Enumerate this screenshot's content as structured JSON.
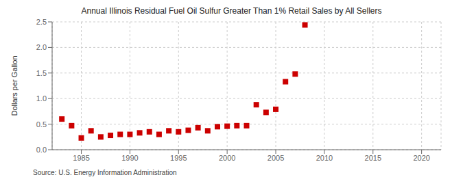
{
  "chart_data": {
    "type": "scatter",
    "title": "Annual Illinois Residual Fuel Oil Sulfur Greater Than 1% Retail Sales by All Sellers",
    "ylabel": "Dollars per Gallon",
    "annotations": [
      "Source: U.S. Energy Information Administration"
    ],
    "x": [
      1983,
      1984,
      1985,
      1986,
      1987,
      1988,
      1989,
      1990,
      1991,
      1992,
      1993,
      1994,
      1995,
      1996,
      1997,
      1998,
      1999,
      2000,
      2001,
      2002,
      2003,
      2004,
      2005,
      2006,
      2007,
      2008
    ],
    "values": [
      0.6,
      0.47,
      0.23,
      0.37,
      0.25,
      0.28,
      0.3,
      0.3,
      0.33,
      0.35,
      0.3,
      0.37,
      0.35,
      0.38,
      0.43,
      0.37,
      0.45,
      0.46,
      0.47,
      0.47,
      0.88,
      0.73,
      0.79,
      1.33,
      1.48,
      2.44
    ],
    "color": "#cc0000",
    "marker": "square",
    "xlim": [
      1982,
      2022
    ],
    "ylim": [
      0.0,
      2.5
    ],
    "xticks": [
      1985,
      1990,
      1995,
      2000,
      2005,
      2010,
      2015,
      2020
    ],
    "yticks": [
      {
        "value": 0,
        "label": "0.0"
      },
      0.5,
      {
        "value": 1,
        "label": "1.0"
      },
      1.5,
      {
        "value": 2,
        "label": "2.0"
      },
      2.5
    ],
    "grid": true
  }
}
